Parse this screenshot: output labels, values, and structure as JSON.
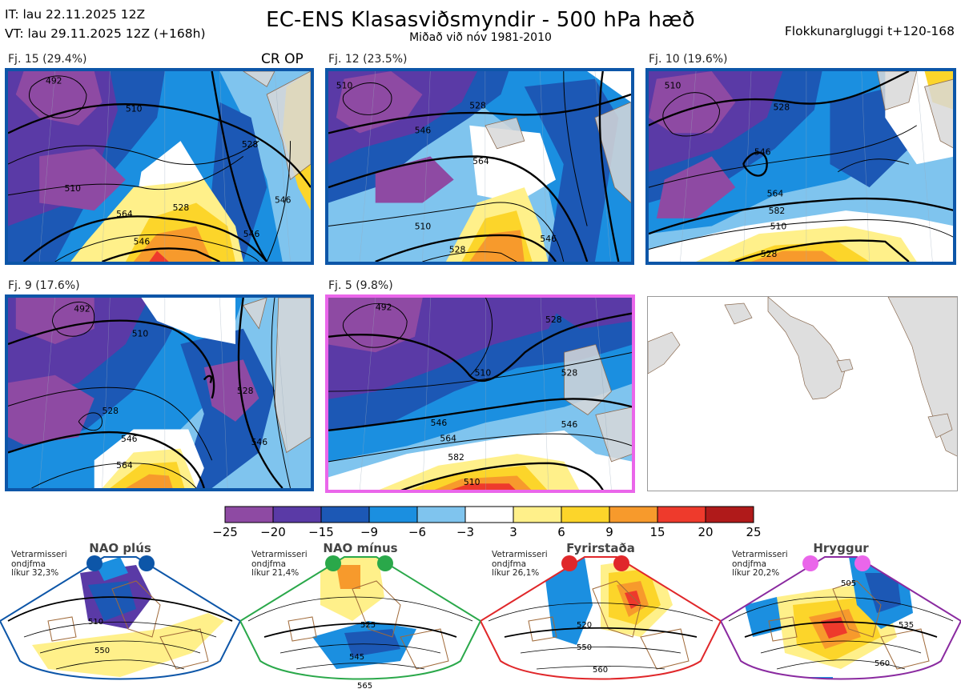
{
  "header": {
    "it_line": "IT: lau 22.11.2025 12Z",
    "vt_line": "VT: lau 29.11.2025 12Z  (+168h)",
    "title": "EC-ENS Klasasviðsmyndir - 500 hPa hæð",
    "subtitle": "Miðað við nóv 1981-2010",
    "window": "Flokkunargluggi t+120-168",
    "op_label": "CR OP"
  },
  "panels": [
    {
      "label": "Fj. 15 (29.4%)",
      "border": "#0d56a8",
      "contours": [
        "492",
        "510",
        "528",
        "546",
        "564",
        "546",
        "510",
        "528",
        "546"
      ]
    },
    {
      "label": "Fj. 12 (23.5%)",
      "border": "#0d56a8",
      "contours": [
        "510",
        "528",
        "546",
        "564",
        "510",
        "528",
        "546"
      ]
    },
    {
      "label": "Fj. 10 (19.6%)",
      "border": "#0d56a8",
      "contours": [
        "510",
        "528",
        "546",
        "564",
        "582",
        "510",
        "528"
      ]
    },
    {
      "label": "Fj. 9 (17.6%)",
      "border": "#0d56a8",
      "contours": [
        "492",
        "510",
        "528",
        "546",
        "564",
        "528",
        "546"
      ]
    },
    {
      "label": "Fj. 5 (9.8%)",
      "border": "#ea66ea",
      "contours": [
        "492",
        "510",
        "528",
        "546",
        "564",
        "582",
        "510",
        "528",
        "546"
      ]
    }
  ],
  "colorbar": {
    "ticks": [
      "−25",
      "−20",
      "−15",
      "−9",
      "−6",
      "−3",
      "3",
      "6",
      "9",
      "15",
      "20",
      "25"
    ],
    "colors": [
      "#8e4aa3",
      "#5a3aa6",
      "#1c58b5",
      "#1b8fe0",
      "#7fc4ee",
      "#ffffff",
      "#fff08a",
      "#fcd52a",
      "#f79a2c",
      "#ee3a2c",
      "#b01a1a"
    ]
  },
  "regimes": [
    {
      "name": "NAO plús",
      "note_l1": "Vetrarmisseri",
      "note_l2": "ondjfma",
      "note_l3": "líkur 32,3%",
      "color": "#0d56a8",
      "dots": [
        "#0d56a8",
        "#0d56a8"
      ],
      "contours": [
        "510",
        "550"
      ]
    },
    {
      "name": "NAO mínus",
      "note_l1": "Vetrarmisseri",
      "note_l2": "ondjfma",
      "note_l3": "líkur 21,4%",
      "color": "#2aa84a",
      "dots": [
        "#2aa84a",
        "#2aa84a"
      ],
      "contours": [
        "525",
        "545",
        "565"
      ]
    },
    {
      "name": "Fyrirstaða",
      "note_l1": "Vetrarmisseri",
      "note_l2": "ondjfma",
      "note_l3": "líkur 26,1%",
      "color": "#e0272a",
      "dots": [
        "#e0272a",
        "#e0272a"
      ],
      "contours": [
        "520",
        "550",
        "560"
      ]
    },
    {
      "name": "Hryggur",
      "note_l1": "Vetrarmisseri",
      "note_l2": "ondjfma",
      "note_l3": "líkur 20,2%",
      "color": "#8a2aa0",
      "dots": [
        "#ea66ea",
        "#ea66ea"
      ],
      "contours": [
        "505",
        "535",
        "560"
      ]
    }
  ]
}
